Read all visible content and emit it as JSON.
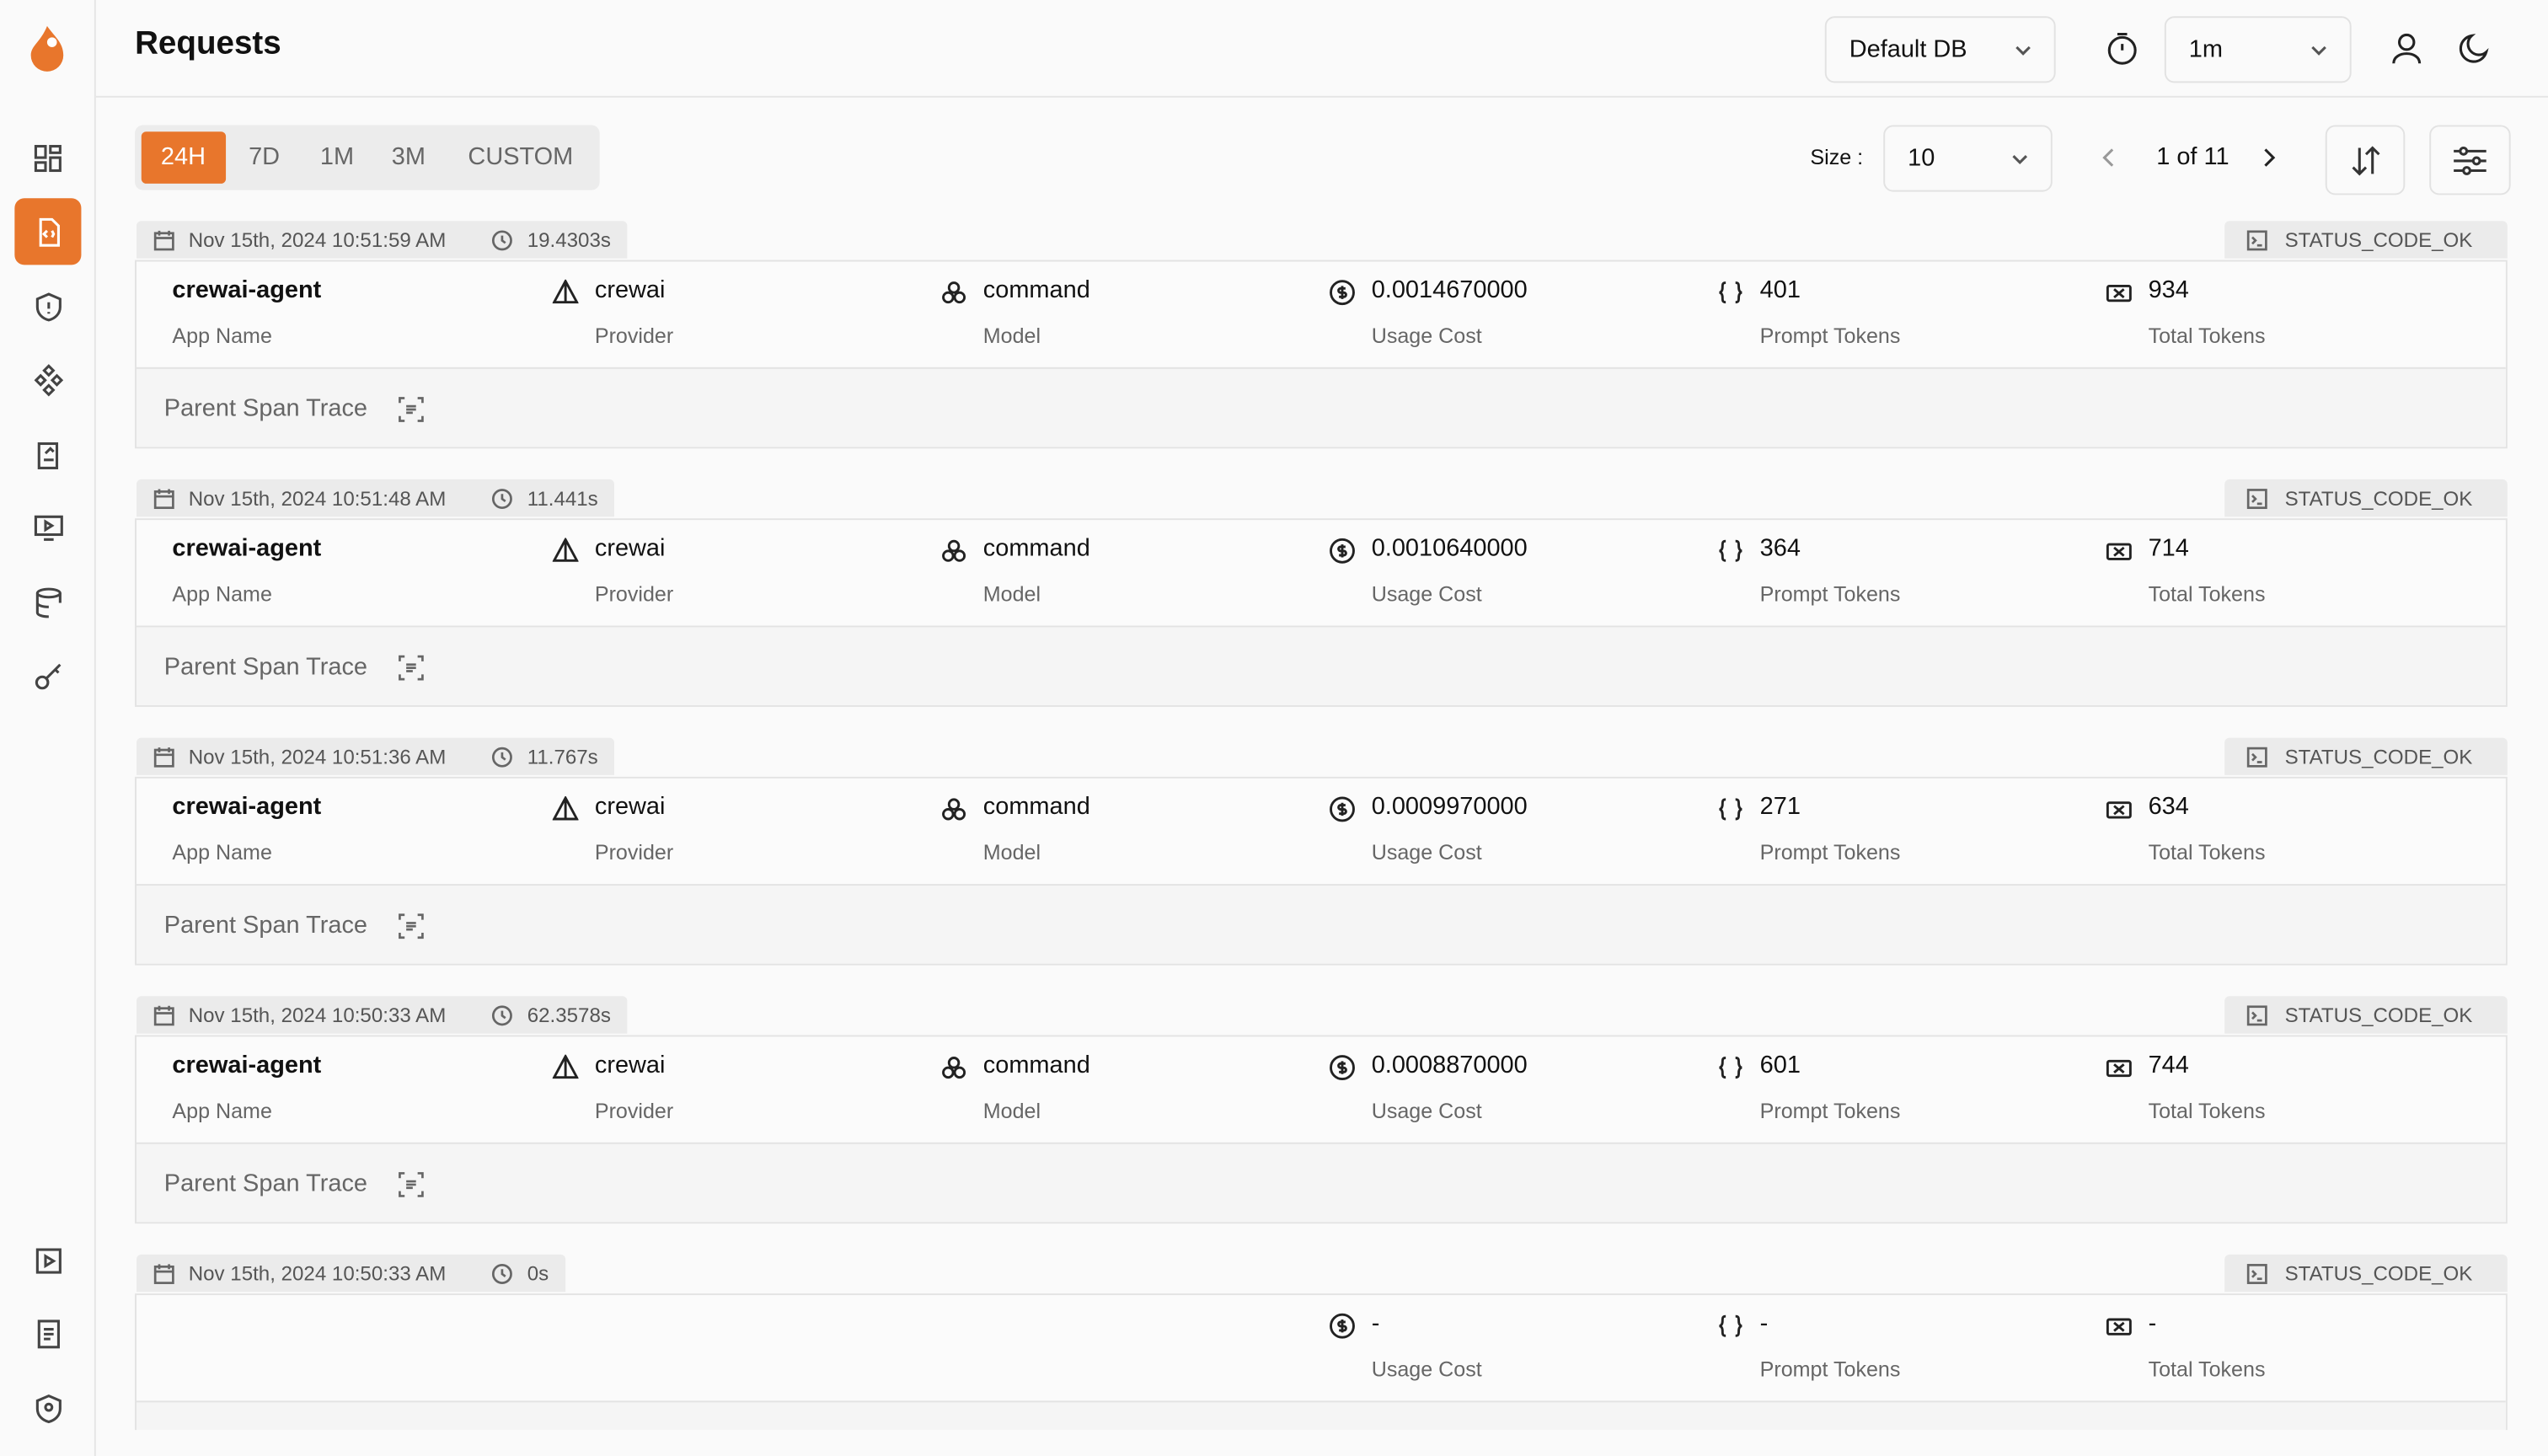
{
  "header": {
    "title": "Requests",
    "database": "Default DB",
    "refresh_interval": "1m"
  },
  "filters": [
    "24H",
    "7D",
    "1M",
    "3M",
    "CUSTOM"
  ],
  "pagination": {
    "size_label": "Size :",
    "size": "10",
    "page": "1 of 11"
  },
  "field_labels": {
    "app_name": "App Name",
    "provider": "Provider",
    "model": "Model",
    "usage_cost": "Usage Cost",
    "prompt_tokens": "Prompt Tokens",
    "total_tokens": "Total Tokens"
  },
  "trace_label": "Parent Span Trace",
  "requests": [
    {
      "timestamp": "Nov 15th, 2024 10:51:59 AM",
      "duration": "19.4303s",
      "status": "STATUS_CODE_OK",
      "app_name": "crewai-agent",
      "provider": "crewai",
      "model": "command",
      "usage_cost": "0.0014670000",
      "prompt_tokens": "401",
      "total_tokens": "934"
    },
    {
      "timestamp": "Nov 15th, 2024 10:51:48 AM",
      "duration": "11.441s",
      "status": "STATUS_CODE_OK",
      "app_name": "crewai-agent",
      "provider": "crewai",
      "model": "command",
      "usage_cost": "0.0010640000",
      "prompt_tokens": "364",
      "total_tokens": "714"
    },
    {
      "timestamp": "Nov 15th, 2024 10:51:36 AM",
      "duration": "11.767s",
      "status": "STATUS_CODE_OK",
      "app_name": "crewai-agent",
      "provider": "crewai",
      "model": "command",
      "usage_cost": "0.0009970000",
      "prompt_tokens": "271",
      "total_tokens": "634"
    },
    {
      "timestamp": "Nov 15th, 2024 10:50:33 AM",
      "duration": "62.3578s",
      "status": "STATUS_CODE_OK",
      "app_name": "crewai-agent",
      "provider": "crewai",
      "model": "command",
      "usage_cost": "0.0008870000",
      "prompt_tokens": "601",
      "total_tokens": "744"
    },
    {
      "timestamp": "Nov 15th, 2024 10:50:33 AM",
      "duration": "0s",
      "status": "STATUS_CODE_OK",
      "usage_cost": "-",
      "prompt_tokens": "-",
      "total_tokens": "-"
    }
  ]
}
